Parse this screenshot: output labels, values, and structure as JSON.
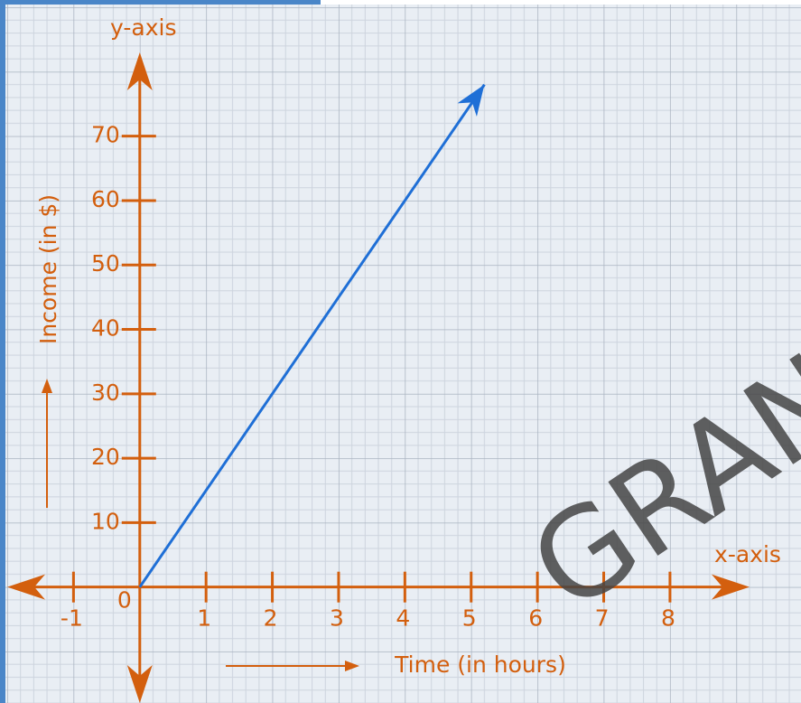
{
  "chart_data": {
    "type": "line",
    "x_axis_name": "x-axis",
    "y_axis_name": "y-axis",
    "xlabel": "Time (in hours)",
    "ylabel": "Income (in $)",
    "x": [
      0,
      5.2
    ],
    "values": [
      0,
      78
    ],
    "color": "#1f6fd6",
    "axis_color": "#d35f0e",
    "xlim": [
      -2,
      9.2
    ],
    "ylim": [
      -18,
      83
    ],
    "xticks": [
      -1,
      0,
      1,
      2,
      3,
      4,
      5,
      6,
      7,
      8
    ],
    "yticks": [
      10,
      20,
      30,
      40,
      50,
      60,
      70
    ],
    "grid": true
  },
  "watermark": "GRAND"
}
